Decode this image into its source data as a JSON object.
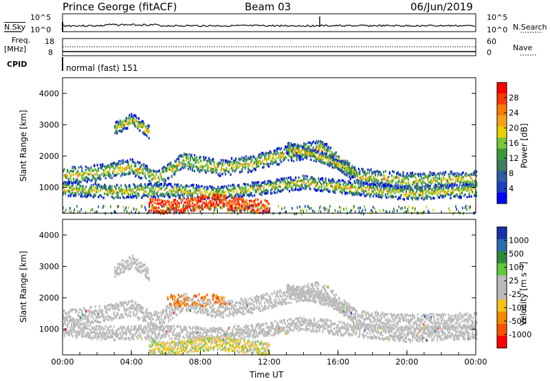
{
  "header": {
    "station": "Prince George (fitACF)",
    "beam": "Beam 03",
    "date": "06/Jun/2019"
  },
  "top_panels": {
    "nsky_label": "N.Sky",
    "nsearch_label": "N.Search",
    "noise_left_ticks": [
      "10^5",
      "10^0"
    ],
    "noise_right_ticks": [
      "10^5",
      "10^0"
    ],
    "freq_label_1": "Freq.",
    "freq_label_2": "[MHz]",
    "freq_ticks": [
      "18",
      "8"
    ],
    "nave_label": "Nave",
    "nave_ticks": [
      "60",
      "0"
    ],
    "cpid_label": "CPID",
    "cpid_text": "normal (fast) 151"
  },
  "chart_data": [
    {
      "type": "heatmap",
      "title": "",
      "ylabel": "Slant Range [km]",
      "xlabel": "",
      "y_ticks": [
        "4000",
        "3000",
        "2000",
        "1000"
      ],
      "ylim": [
        180,
        4500
      ],
      "colorbar_label": "Power [dB]",
      "colorbar_ticks": [
        "28",
        "24",
        "20",
        "16",
        "12",
        "8",
        "4"
      ],
      "colorbar_colors": [
        "#ff0000",
        "#ff3a00",
        "#ff7a00",
        "#f7a21c",
        "#e6d200",
        "#7cc63a",
        "#3a9a3a",
        "#3c7f5c",
        "#2c5fa0",
        "#1b3fc0",
        "#0000ff"
      ],
      "bands": [
        {
          "x": [
            0,
            2,
            4,
            5.5,
            7,
            9,
            11,
            13,
            15,
            17,
            20,
            24
          ],
          "y": [
            1400,
            1500,
            1700,
            1300,
            1900,
            1650,
            1800,
            2100,
            2300,
            1400,
            1250,
            1300
          ],
          "width": 260
        },
        {
          "x": [
            0,
            3,
            6,
            9,
            12,
            14,
            17,
            20,
            24
          ],
          "y": [
            1000,
            900,
            950,
            850,
            1050,
            1200,
            1000,
            850,
            950
          ],
          "width": 220
        },
        {
          "x": [
            5,
            6,
            7,
            8,
            9,
            10,
            11,
            12
          ],
          "y": [
            500,
            400,
            450,
            550,
            600,
            500,
            450,
            400
          ],
          "width": 220
        },
        {
          "x": [
            3,
            4,
            5
          ],
          "y": [
            2900,
            3200,
            2800
          ],
          "width": 200
        },
        {
          "x": [
            13,
            15,
            17
          ],
          "y": [
            2300,
            2000,
            1500
          ],
          "width": 180
        }
      ]
    },
    {
      "type": "heatmap",
      "title": "",
      "ylabel": "Slant Range [km]",
      "xlabel": "Time UT",
      "y_ticks": [
        "4000",
        "3000",
        "2000",
        "1000"
      ],
      "ylim": [
        180,
        4500
      ],
      "x_ticks": [
        "00:00",
        "04:00",
        "08:00",
        "12:00",
        "16:00",
        "20:00",
        "00:00"
      ],
      "xlim": [
        0,
        24
      ],
      "colorbar_label": "Velocity [m s⁻¹]",
      "colorbar_ticks": [
        "1000",
        "500",
        "100",
        "25",
        "-25",
        "-100",
        "-500",
        "-1000"
      ],
      "colorbar_colors": [
        "#1a2ea8",
        "#2b6bb0",
        "#2e8b3c",
        "#62c83a",
        "#bbbbbb",
        "#bbbbbb",
        "#f5c31a",
        "#f58a00",
        "#ff5200",
        "#ff0000"
      ]
    }
  ]
}
